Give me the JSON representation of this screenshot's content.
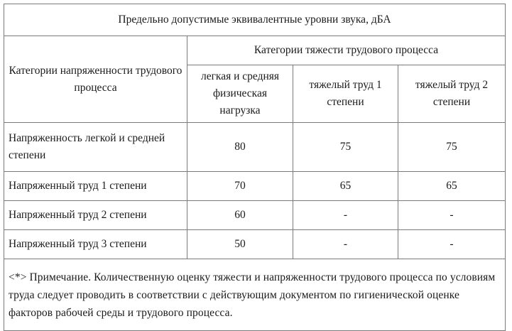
{
  "table": {
    "title": "Предельно допустимые эквивалентные уровни звука, дБА",
    "row_header": "Категории напряженности трудового процесса",
    "column_group_header": "Категории тяжести трудового процесса",
    "columns": [
      "легкая и средняя физическая нагрузка",
      "тяжелый труд 1 степени",
      "тяжелый труд 2 степени"
    ],
    "rows": [
      {
        "label": "Напряженность легкой и средней степени",
        "values": [
          "80",
          "75",
          "75"
        ]
      },
      {
        "label": "Напряженный труд 1 степени",
        "values": [
          "70",
          "65",
          "65"
        ]
      },
      {
        "label": "Напряженный труд 2 степени",
        "values": [
          "60",
          "-",
          "-"
        ]
      },
      {
        "label": "Напряженный труд 3 степени",
        "values": [
          "50",
          "-",
          "-"
        ]
      }
    ],
    "note": "<*> Примечание. Количественную оценку тяжести и напряженности трудового процесса по условиям труда следует проводить в соответствии с действующим документом по гигиенической оценке факторов рабочей среды и трудового процесса."
  }
}
